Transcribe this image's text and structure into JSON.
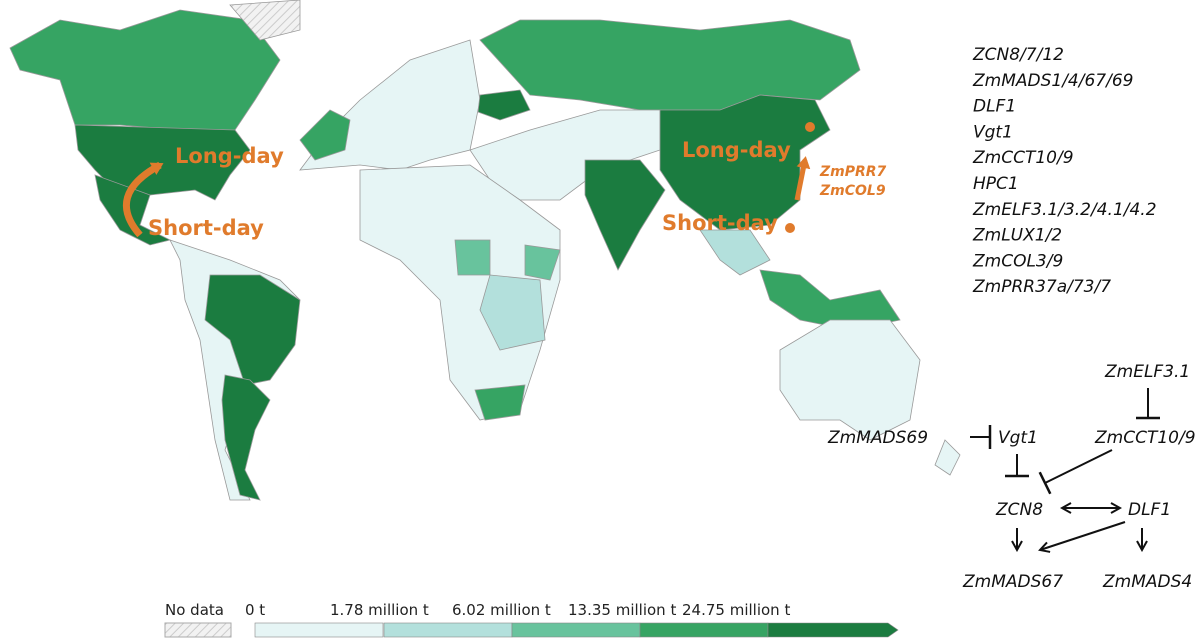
{
  "map": {
    "annotations": [
      "Long-day",
      "Short-day",
      "Long-day",
      "Short-day",
      "ZmPRR7",
      "ZmCOL9"
    ]
  },
  "gene_list": [
    "ZCN8/7/12",
    "ZmMADS1/4/67/69",
    "DLF1",
    "Vgt1",
    "ZmCCT10/9",
    "HPC1",
    "ZmELF3.1/3.2/4.1/4.2",
    "ZmLUX1/2",
    "ZmCOL3/9",
    "ZmPRR37a/73/7"
  ],
  "network": {
    "nodes": [
      "ZmELF3.1",
      "ZmMADS69",
      "Vgt1",
      "ZmCCT10/9",
      "ZCN8",
      "DLF1",
      "ZmMADS67",
      "ZmMADS4"
    ]
  },
  "legend": {
    "no_data": "No data",
    "labels": [
      "0 t",
      "1.78 million t",
      "6.02 million t",
      "13.35 million t",
      "24.75 million t"
    ],
    "colors": [
      "#e6f5f5",
      "#b3e0dc",
      "#68c39d",
      "#36a463",
      "#1b7c40"
    ]
  }
}
